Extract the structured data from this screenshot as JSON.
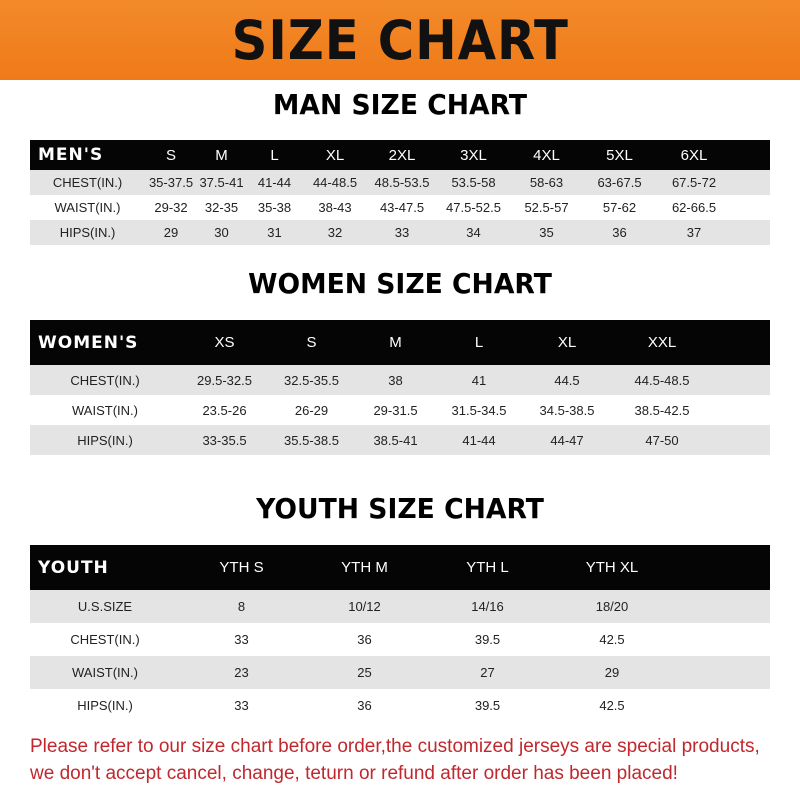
{
  "banner_title": "SIZE CHART",
  "men": {
    "title": "MAN SIZE CHART",
    "header": [
      "MEN'S",
      "S",
      "M",
      "L",
      "XL",
      "2XL",
      "3XL",
      "4XL",
      "5XL",
      "6XL"
    ],
    "rows": [
      [
        "CHEST(IN.)",
        "35-37.5",
        "37.5-41",
        "41-44",
        "44-48.5",
        "48.5-53.5",
        "53.5-58",
        "58-63",
        "63-67.5",
        "67.5-72"
      ],
      [
        "WAIST(IN.)",
        "29-32",
        "32-35",
        "35-38",
        "38-43",
        "43-47.5",
        "47.5-52.5",
        "52.5-57",
        "57-62",
        "62-66.5"
      ],
      [
        "HIPS(IN.)",
        "29",
        "30",
        "31",
        "32",
        "33",
        "34",
        "35",
        "36",
        "37"
      ]
    ]
  },
  "women": {
    "title": "WOMEN SIZE CHART",
    "header": [
      "WOMEN'S",
      "XS",
      "S",
      "M",
      "L",
      "XL",
      "XXL"
    ],
    "rows": [
      [
        "CHEST(IN.)",
        "29.5-32.5",
        "32.5-35.5",
        "38",
        "41",
        "44.5",
        "44.5-48.5"
      ],
      [
        "WAIST(IN.)",
        "23.5-26",
        "26-29",
        "29-31.5",
        "31.5-34.5",
        "34.5-38.5",
        "38.5-42.5"
      ],
      [
        "HIPS(IN.)",
        "33-35.5",
        "35.5-38.5",
        "38.5-41",
        "41-44",
        "44-47",
        "47-50"
      ]
    ]
  },
  "youth": {
    "title": "YOUTH SIZE CHART",
    "header": [
      "YOUTH",
      "YTH S",
      "YTH M",
      "YTH L",
      "YTH XL"
    ],
    "rows": [
      [
        "U.S.SIZE",
        "8",
        "10/12",
        "14/16",
        "18/20"
      ],
      [
        "CHEST(IN.)",
        "33",
        "36",
        "39.5",
        "42.5"
      ],
      [
        "WAIST(IN.)",
        "23",
        "25",
        "27",
        "29"
      ],
      [
        "HIPS(IN.)",
        "33",
        "36",
        "39.5",
        "42.5"
      ]
    ]
  },
  "footer": {
    "line1": "Please refer to our size chart before order,the customized jerseys are special products,",
    "line2": "we don't accept cancel, change, teturn or refund after order has been placed!"
  },
  "colors": {
    "banner": "#f07f1f",
    "header_row": "#050505",
    "stripe": "#e4e4e4",
    "notice": "#c1272d"
  }
}
